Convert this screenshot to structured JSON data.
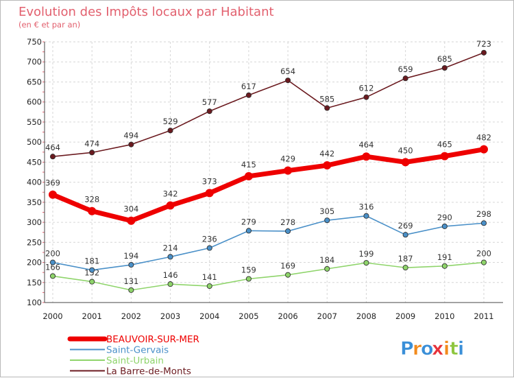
{
  "chart_data": {
    "type": "line",
    "title": "Evolution des Impôts locaux par Habitant",
    "subtitle": "(en € et par an)",
    "categories": [
      "2000",
      "2001",
      "2002",
      "2003",
      "2004",
      "2005",
      "2006",
      "2007",
      "2008",
      "2009",
      "2010",
      "2011"
    ],
    "ylim": [
      100,
      750
    ],
    "yticks": [
      100,
      150,
      200,
      250,
      300,
      350,
      400,
      450,
      500,
      550,
      600,
      650,
      700,
      750
    ],
    "grid": true,
    "legend_position": "bottom-left",
    "series": [
      {
        "name": "BEAUVOIR-SUR-MER",
        "color": "#ee0000",
        "values": [
          369,
          328,
          304,
          342,
          373,
          415,
          429,
          442,
          464,
          450,
          465,
          482
        ]
      },
      {
        "name": "Saint-Gervais",
        "color": "#4a90c8",
        "values": [
          200,
          181,
          194,
          214,
          236,
          279,
          278,
          305,
          316,
          269,
          290,
          298
        ]
      },
      {
        "name": "Saint-Urbain",
        "color": "#8ed46a",
        "values": [
          166,
          152,
          131,
          146,
          141,
          159,
          169,
          184,
          199,
          187,
          191,
          200
        ]
      },
      {
        "name": "La Barre-de-Monts",
        "color": "#6b1a1f",
        "values": [
          464,
          474,
          494,
          529,
          577,
          617,
          654,
          585,
          612,
          659,
          685,
          723
        ]
      }
    ]
  },
  "logo": {
    "letters": [
      "P",
      "r",
      "o",
      "x",
      "i",
      "t",
      "i"
    ],
    "colors": [
      "#3a8fd8",
      "#f28a1c",
      "#3a8fd8",
      "#e7323a",
      "#f28a1c",
      "#8ec63f",
      "#3a8fd8"
    ]
  }
}
